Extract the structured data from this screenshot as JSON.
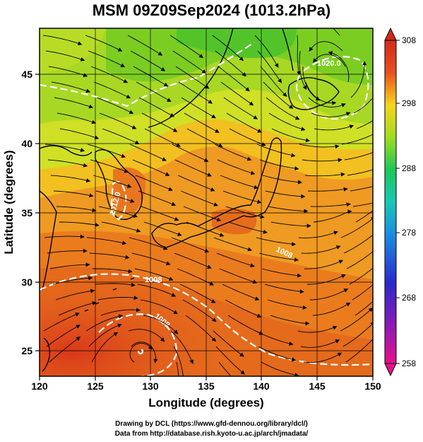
{
  "title": "MSM 09Z09Sep2024 (1013.2hPa)",
  "xaxis": {
    "label": "Longitude (degrees)",
    "ticks": [
      "120",
      "125",
      "130",
      "135",
      "140",
      "145",
      "150"
    ],
    "range": [
      120,
      150
    ]
  },
  "yaxis": {
    "label": "Latitude  (degrees)",
    "ticks": [
      "25",
      "30",
      "35",
      "40",
      "45"
    ],
    "range": [
      22.4,
      47.6
    ]
  },
  "colorbar": {
    "ticks": [
      "308",
      "298",
      "288",
      "278",
      "268",
      "258"
    ],
    "range": [
      258,
      308
    ],
    "colors": [
      "#e8108c",
      "#8a1ab4",
      "#2a2acc",
      "#1a8ee0",
      "#18c8c4",
      "#1ec85a",
      "#5ad21e",
      "#c8e61e",
      "#f0c81e",
      "#f08c1e",
      "#e8501e",
      "#d22a1a"
    ]
  },
  "isobars": [
    {
      "label": "1020.0"
    },
    {
      "label": "1012.0"
    },
    {
      "label": "1008"
    },
    {
      "label": "1008"
    },
    {
      "label": "1008"
    }
  ],
  "credits": {
    "line1": "Drawing by DCL (https://www.gfd-dennou.org/library/dcl/)",
    "line2": "Data from http://database.rish.kyoto-u.ac.jp/arch/jmadata/"
  }
}
